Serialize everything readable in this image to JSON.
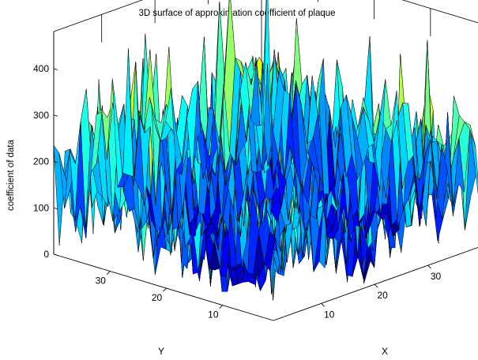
{
  "chart_data": {
    "type": "surface",
    "title": "3D surface of approximation coefficient of plaque",
    "xlabel": "X",
    "ylabel": "Y",
    "zlabel": "coefficient of data",
    "xlim": [
      1,
      40
    ],
    "ylim": [
      1,
      40
    ],
    "zlim": [
      0,
      480
    ],
    "x_ticks": [
      "10",
      "20",
      "30"
    ],
    "y_ticks": [
      "10",
      "20",
      "30"
    ],
    "z_ticks": [
      "0",
      "100",
      "200",
      "300",
      "400"
    ],
    "x_tick_values": [
      10,
      20,
      30
    ],
    "y_tick_values": [
      10,
      20,
      30
    ],
    "z_tick_values": [
      0,
      100,
      200,
      300,
      400
    ],
    "grid_size": [
      40,
      40
    ],
    "colormap": "jet",
    "color_range": [
      20,
      480
    ],
    "edge_color": "#000000",
    "approx_z_range": [
      10,
      470
    ]
  }
}
